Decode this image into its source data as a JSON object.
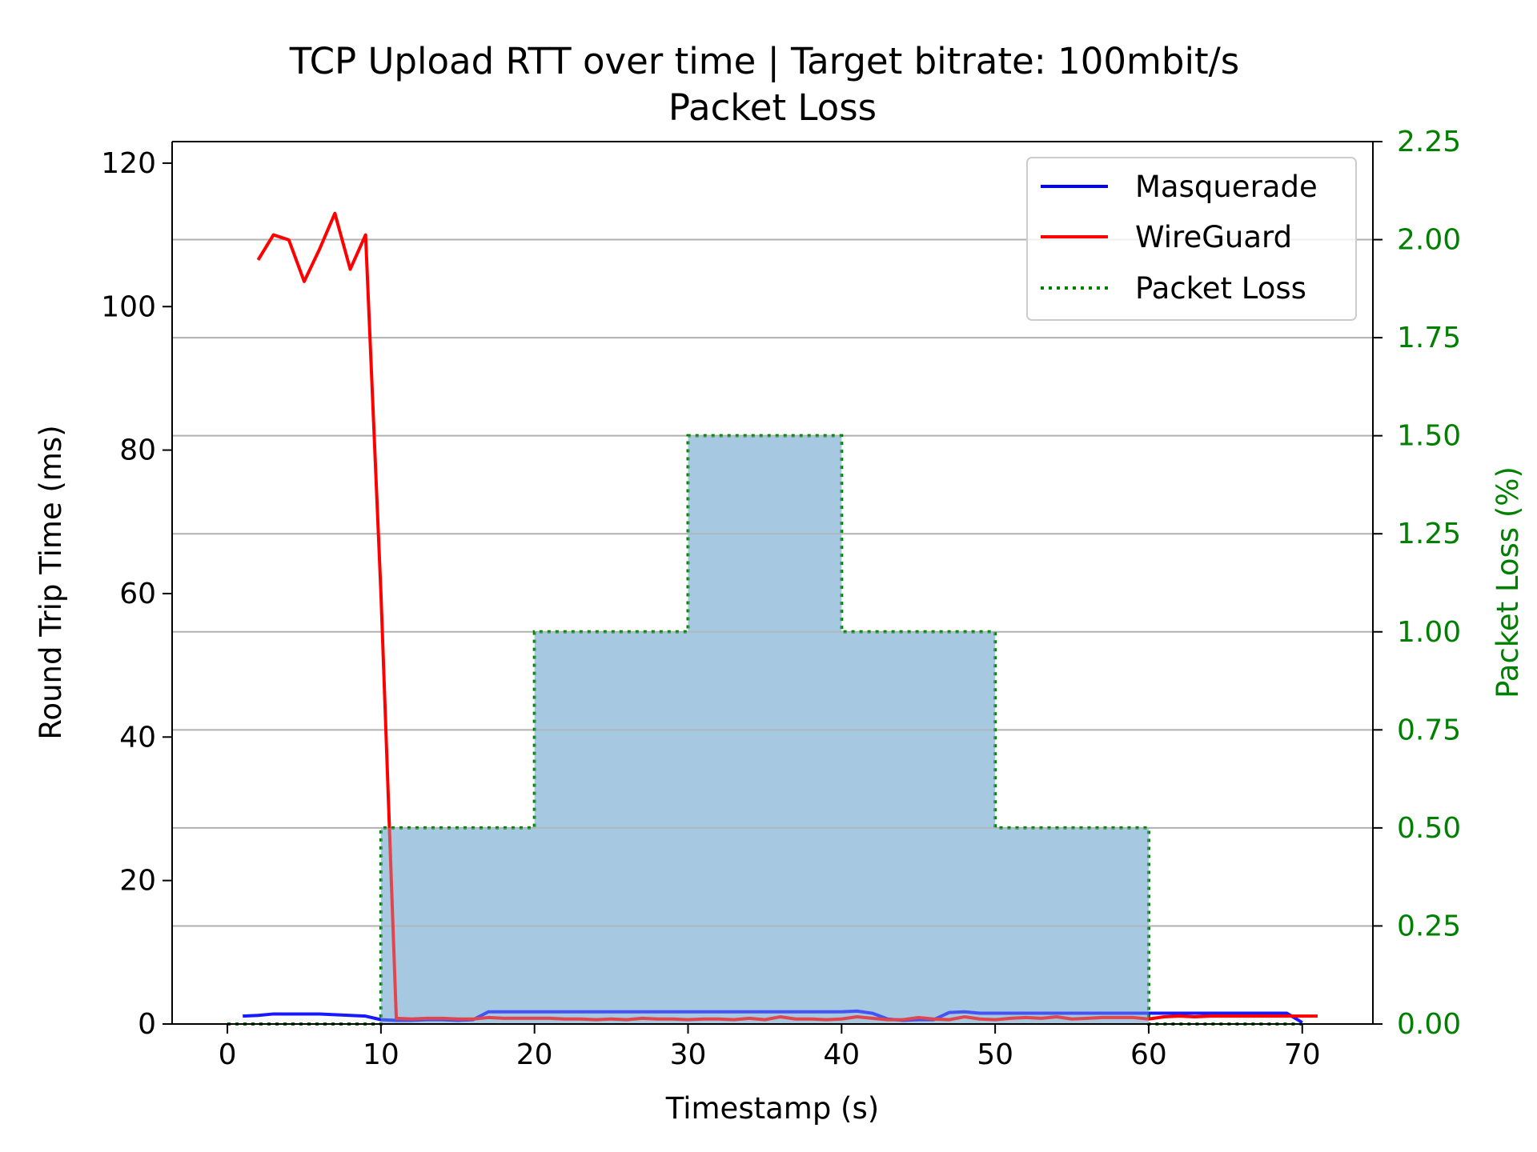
{
  "chart_data": {
    "type": "line",
    "title": "TCP Upload RTT over time | Target bitrate: 100mbit/s",
    "subtitle": "Packet Loss",
    "xlabel": "Timestamp (s)",
    "ylabel": "Round Trip Time (ms)",
    "y2label": "Packet Loss (%)",
    "xlim": [
      -3.6,
      74.6
    ],
    "ylim": [
      0,
      123
    ],
    "y2lim": [
      0,
      2.25
    ],
    "xticks": [
      0,
      10,
      20,
      30,
      40,
      50,
      60,
      70
    ],
    "yticks": [
      0,
      20,
      40,
      60,
      80,
      100,
      120
    ],
    "y2ticks": [
      0.0,
      0.25,
      0.5,
      0.75,
      1.0,
      1.25,
      1.5,
      1.75,
      2.0,
      2.25
    ],
    "y2tick_labels": [
      "0.00",
      "0.25",
      "0.50",
      "0.75",
      "1.00",
      "1.25",
      "1.50",
      "1.75",
      "2.00",
      "2.25"
    ],
    "grid": "horizontal lines at right-axis ticks",
    "legend_position": "top-right",
    "series": [
      {
        "name": "Masquerade",
        "axis": "left",
        "color": "#0000ff",
        "style": "solid",
        "x": [
          1,
          2,
          3,
          4,
          5,
          6,
          7,
          8,
          9,
          10,
          11,
          12,
          13,
          14,
          15,
          16,
          17,
          18,
          19,
          20,
          21,
          22,
          23,
          24,
          25,
          26,
          27,
          28,
          29,
          30,
          31,
          32,
          33,
          34,
          35,
          36,
          37,
          38,
          39,
          40,
          41,
          42,
          43,
          44,
          45,
          46,
          47,
          48,
          49,
          50,
          51,
          52,
          53,
          54,
          55,
          56,
          57,
          58,
          59,
          60,
          61,
          62,
          63,
          64,
          65,
          66,
          67,
          68,
          69,
          70
        ],
        "y": [
          1.1,
          1.2,
          1.4,
          1.4,
          1.4,
          1.4,
          1.3,
          1.2,
          1.1,
          0.6,
          0.5,
          0.5,
          0.6,
          0.6,
          0.5,
          0.6,
          1.7,
          1.7,
          1.7,
          1.7,
          1.7,
          1.7,
          1.7,
          1.7,
          1.7,
          1.7,
          1.7,
          1.7,
          1.7,
          1.7,
          1.7,
          1.7,
          1.7,
          1.7,
          1.7,
          1.7,
          1.7,
          1.7,
          1.7,
          1.7,
          1.8,
          1.5,
          0.7,
          0.5,
          0.6,
          0.6,
          1.6,
          1.7,
          1.5,
          1.5,
          1.5,
          1.5,
          1.5,
          1.5,
          1.5,
          1.5,
          1.5,
          1.5,
          1.5,
          1.5,
          1.5,
          1.5,
          1.5,
          1.5,
          1.5,
          1.5,
          1.5,
          1.5,
          1.5,
          0.2
        ]
      },
      {
        "name": "WireGuard",
        "axis": "left",
        "color": "#ff0000",
        "style": "solid",
        "x": [
          2,
          3,
          4,
          5,
          6,
          7,
          8,
          9,
          10,
          11,
          12,
          13,
          14,
          15,
          16,
          17,
          18,
          19,
          20,
          21,
          22,
          23,
          24,
          25,
          26,
          27,
          28,
          29,
          30,
          31,
          32,
          33,
          34,
          35,
          36,
          37,
          38,
          39,
          40,
          41,
          42,
          43,
          44,
          45,
          46,
          47,
          48,
          49,
          50,
          51,
          52,
          53,
          54,
          55,
          56,
          57,
          58,
          59,
          60,
          61,
          62,
          63,
          64,
          65,
          66,
          67,
          68,
          69,
          70,
          71
        ],
        "y": [
          106.5,
          110,
          109.3,
          103.5,
          108,
          113,
          105.2,
          110,
          60,
          0.8,
          0.7,
          0.8,
          0.8,
          0.7,
          0.7,
          0.9,
          0.8,
          0.8,
          0.8,
          0.8,
          0.7,
          0.7,
          0.6,
          0.7,
          0.6,
          0.8,
          0.7,
          0.7,
          0.6,
          0.7,
          0.7,
          0.6,
          0.8,
          0.6,
          1.0,
          0.7,
          0.7,
          0.6,
          0.7,
          1.0,
          0.8,
          0.6,
          0.6,
          0.9,
          0.7,
          0.6,
          1.0,
          0.7,
          0.6,
          0.8,
          0.9,
          0.8,
          1.0,
          0.7,
          0.8,
          0.9,
          0.9,
          0.9,
          0.7,
          1.0,
          1.1,
          1.0,
          1.1,
          1.1,
          1.1,
          1.1,
          1.1,
          1.1,
          1.1,
          1.1
        ]
      },
      {
        "name": "Packet Loss",
        "axis": "right",
        "color": "#008000",
        "style": "dotted-step",
        "fill_color": "#a6c8e0",
        "x": [
          0,
          10,
          20,
          30,
          40,
          50,
          60,
          70
        ],
        "y": [
          0.0,
          0.5,
          1.0,
          1.5,
          1.0,
          0.5,
          0.0,
          0.0
        ]
      }
    ]
  },
  "colors": {
    "right_axis": "#008000",
    "grid": "#b0b0b0"
  }
}
